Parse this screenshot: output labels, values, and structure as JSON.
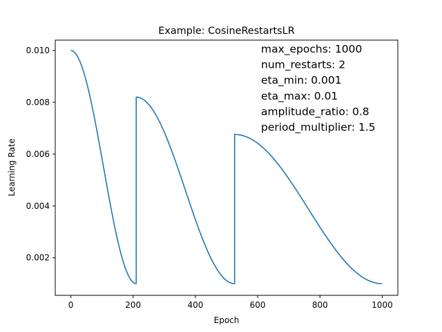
{
  "chart_data": {
    "type": "line",
    "title": "Example: CosineRestartsLR",
    "xlabel": "Epoch",
    "ylabel": "Learning Rate",
    "xlim": [
      -50,
      1050
    ],
    "ylim": [
      0.00055,
      0.0104
    ],
    "x_ticks": [
      0,
      200,
      400,
      600,
      800,
      1000
    ],
    "x_tick_labels": [
      "0",
      "200",
      "400",
      "600",
      "800",
      "1000"
    ],
    "y_ticks": [
      0.002,
      0.004,
      0.006,
      0.008,
      0.01
    ],
    "y_tick_labels": [
      "0.002",
      "0.004",
      "0.006",
      "0.008",
      "0.010"
    ],
    "grid": false,
    "series_color": "#1f77b4",
    "annotations": [
      "max_epochs: 1000",
      "num_restarts: 2",
      "eta_min: 0.001",
      "eta_max: 0.01",
      "amplitude_ratio: 0.8",
      "period_multiplier: 1.5"
    ],
    "series": [
      {
        "segments": [
          {
            "x": [
              0,
              21,
              42,
              63,
              84,
              105,
              126,
              147,
              168,
              189,
              210
            ],
            "y": [
              0.01,
              0.00978,
              0.00914,
              0.00817,
              0.00695,
              0.0055,
              0.00405,
              0.00283,
              0.00186,
              0.00122,
              0.001
            ]
          },
          {
            "x": [
              210,
              242,
              273,
              305,
              336,
              368,
              400,
              431,
              463,
              494,
              526
            ],
            "y": [
              0.0082,
              0.00803,
              0.00751,
              0.00673,
              0.00575,
              0.0046,
              0.00345,
              0.00247,
              0.00169,
              0.00117,
              0.001
            ]
          },
          {
            "x": [
              526,
              573,
              621,
              668,
              715,
              763,
              810,
              857,
              905,
              952,
              1000
            ],
            "y": [
              0.00676,
              0.00662,
              0.00622,
              0.00562,
              0.00486,
              0.00398,
              0.0031,
              0.00234,
              0.00174,
              0.00134,
              0.001
            ]
          }
        ]
      }
    ]
  }
}
